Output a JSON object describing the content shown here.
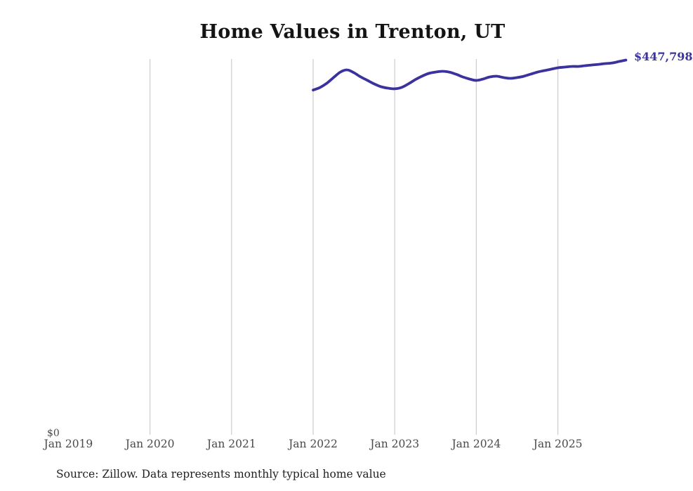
{
  "title": "Home Values in Trenton, UT",
  "end_label": "$447,798",
  "source_note": "Source: Zillow. Data represents monthly typical home value",
  "colors": {
    "line": "#3b329e",
    "end_label": "#3b329e",
    "grid": "#cdcdcd",
    "axis_text": "#4a4a4a",
    "title_text": "#141414",
    "source_text": "#1f1f1f",
    "background": "#ffffff"
  },
  "chart_data": {
    "type": "line",
    "title": "Home Values in Trenton, UT",
    "xlabel": "",
    "ylabel": "",
    "ylim": [
      0,
      449000
    ],
    "grid": "vertical-only",
    "legend": "none",
    "y_origin_label": "$0",
    "x_ticks": [
      {
        "label": "Jan 2019",
        "gridline": false
      },
      {
        "label": "Jan 2020",
        "gridline": true
      },
      {
        "label": "Jan 2021",
        "gridline": true
      },
      {
        "label": "Jan 2022",
        "gridline": true
      },
      {
        "label": "Jan 2023",
        "gridline": true
      },
      {
        "label": "Jan 2024",
        "gridline": true
      },
      {
        "label": "Jan 2025",
        "gridline": true
      }
    ],
    "series": [
      {
        "name": "Monthly typical home value",
        "end_value": 447798,
        "months": [
          "2022-01",
          "2022-02",
          "2022-03",
          "2022-04",
          "2022-05",
          "2022-06",
          "2022-07",
          "2022-08",
          "2022-09",
          "2022-10",
          "2022-11",
          "2022-12",
          "2023-01",
          "2023-02",
          "2023-03",
          "2023-04",
          "2023-05",
          "2023-06",
          "2023-07",
          "2023-08",
          "2023-09",
          "2023-10",
          "2023-11",
          "2023-12",
          "2024-01",
          "2024-02",
          "2024-03",
          "2024-04",
          "2024-05",
          "2024-06",
          "2024-07",
          "2024-08",
          "2024-09",
          "2024-10",
          "2024-11",
          "2024-12",
          "2025-01",
          "2025-02",
          "2025-03",
          "2025-04",
          "2025-05",
          "2025-06",
          "2025-07",
          "2025-08",
          "2025-09",
          "2025-10",
          "2025-11"
        ],
        "values": [
          412000,
          415000,
          420100,
          426900,
          433500,
          436100,
          432700,
          427700,
          423500,
          419300,
          416000,
          414300,
          413500,
          415100,
          419300,
          424300,
          428500,
          431900,
          433500,
          434400,
          433500,
          431000,
          427700,
          425200,
          423500,
          425200,
          427700,
          428500,
          426900,
          426000,
          426900,
          428500,
          431000,
          433500,
          435200,
          436900,
          438600,
          439400,
          440200,
          440200,
          441100,
          441900,
          442700,
          443600,
          444400,
          446100,
          447798
        ]
      }
    ]
  }
}
